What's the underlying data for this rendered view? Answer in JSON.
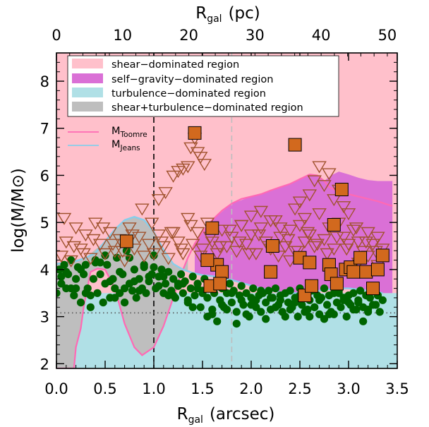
{
  "chart_data": {
    "type": "scatter",
    "xlabel": "R",
    "xlabel_sub": "gal",
    "xlabel_unit": "(arcsec)",
    "x2label": "R",
    "x2label_sub": "gal",
    "x2label_unit": "(pc)",
    "ylabel": "log(M/M⊙)",
    "xlim": [
      0.0,
      3.5
    ],
    "ylim": [
      1.9,
      8.6
    ],
    "x2lim": [
      0,
      51.5
    ],
    "xticks": [
      0.0,
      0.5,
      1.0,
      1.5,
      2.0,
      2.5,
      3.0,
      3.5
    ],
    "xtick_labels": [
      "0.0",
      "0.5",
      "1.0",
      "1.5",
      "2.0",
      "2.5",
      "3.0",
      "3.5"
    ],
    "x2ticks": [
      0,
      10,
      20,
      30,
      40,
      50
    ],
    "x2tick_labels": [
      "0",
      "10",
      "20",
      "30",
      "40",
      "50"
    ],
    "yticks": [
      2,
      3,
      4,
      5,
      6,
      7,
      8
    ],
    "ytick_labels": [
      "2",
      "3",
      "4",
      "5",
      "6",
      "7",
      "8"
    ],
    "grid": false,
    "legend_position": "top-left",
    "legend": [
      {
        "label": "shear−dominated region",
        "color": "#ffc0cb",
        "kind": "patch"
      },
      {
        "label": "self−gravity−dominated region",
        "color": "#da70d6",
        "kind": "patch"
      },
      {
        "label": "turbulence−dominated region",
        "color": "#b0e0e6",
        "kind": "patch"
      },
      {
        "label": "shear+turbulence−dominated region",
        "color": "#bebebe",
        "kind": "patch"
      }
    ],
    "line_legend": [
      {
        "label": "M",
        "sub": "Toomre",
        "color": "#ff69b4"
      },
      {
        "label": "M",
        "sub": "Jeans",
        "color": "#87ceeb"
      }
    ],
    "colors": {
      "shear": "#ffc0cb",
      "self_gravity": "#da70d6",
      "turbulence": "#b0e0e6",
      "shear_turbulence": "#bebebe",
      "toomre": "#ff69b4",
      "jeans": "#87ceeb",
      "clumps": "#006400",
      "upper_limits": "#a0522d",
      "squares": "#d2691e"
    },
    "vlines": [
      {
        "x": 1.0,
        "style": "dashed",
        "color": "#000000"
      },
      {
        "x": 1.8,
        "style": "dashed",
        "color": "#bebebe"
      }
    ],
    "hlines": [
      {
        "y": 3.08,
        "style": "dotted",
        "color": "#555555"
      }
    ],
    "series": [
      {
        "name": "M",
        "subscript": "Toomre",
        "kind": "line",
        "x": [
          0.0,
          0.18,
          0.2,
          0.25,
          0.28,
          0.35,
          0.42,
          0.5,
          0.6,
          0.7,
          0.8,
          0.88,
          1.0,
          1.1,
          1.2,
          1.28,
          1.35,
          1.42,
          1.5,
          1.6,
          1.7,
          1.8,
          1.9,
          2.0,
          2.1,
          2.2,
          2.3,
          2.4,
          2.5,
          2.6,
          2.68,
          2.75,
          2.8,
          2.9,
          3.0,
          3.1,
          3.2,
          3.3,
          3.4,
          3.45
        ],
        "values": [
          1.9,
          1.9,
          2.35,
          2.75,
          3.2,
          3.95,
          4.02,
          4.0,
          3.6,
          2.85,
          2.35,
          2.18,
          2.35,
          2.8,
          3.4,
          3.9,
          4.25,
          4.55,
          4.8,
          5.05,
          5.25,
          5.4,
          5.5,
          5.55,
          5.6,
          5.68,
          5.75,
          5.82,
          5.92,
          6.02,
          6.0,
          5.88,
          5.75,
          5.65,
          5.6,
          5.55,
          5.5,
          5.45,
          5.38,
          5.35
        ]
      },
      {
        "name": "M",
        "subscript": "Jeans",
        "kind": "line",
        "x": [
          0.0,
          0.1,
          0.2,
          0.3,
          0.4,
          0.5,
          0.6,
          0.7,
          0.8,
          0.9,
          1.0,
          1.1,
          1.2,
          1.3,
          1.4,
          1.5,
          1.6,
          1.7,
          1.8,
          1.9,
          2.0,
          2.1,
          2.2,
          2.3,
          2.4,
          2.5,
          2.6,
          2.7,
          2.8,
          2.9,
          3.0,
          3.1,
          3.2,
          3.3,
          3.35
        ],
        "values": [
          4.12,
          4.15,
          4.18,
          4.25,
          4.35,
          4.6,
          4.85,
          5.05,
          5.12,
          5.05,
          4.8,
          4.42,
          4.12,
          4.0,
          3.93,
          3.88,
          3.86,
          3.82,
          3.78,
          3.72,
          3.66,
          3.6,
          3.55,
          3.52,
          3.5,
          3.5,
          3.52,
          3.55,
          3.58,
          3.6,
          3.6,
          3.58,
          3.55,
          3.52,
          3.5
        ]
      },
      {
        "name": "",
        "kind": "filled-circle",
        "x": [
          0.0,
          0.03,
          0.05,
          0.08,
          0.1,
          0.12,
          0.15,
          0.18,
          0.2,
          0.22,
          0.25,
          0.28,
          0.3,
          0.32,
          0.35,
          0.38,
          0.4,
          0.42,
          0.45,
          0.48,
          0.5,
          0.52,
          0.55,
          0.58,
          0.6,
          0.62,
          0.65,
          0.68,
          0.7,
          0.72,
          0.75,
          0.78,
          0.8,
          0.82,
          0.85,
          0.88,
          0.9,
          0.92,
          0.95,
          0.98,
          1.0,
          1.02,
          1.05,
          1.08,
          1.1,
          1.12,
          1.15,
          1.18,
          1.2,
          1.22,
          1.25,
          1.28,
          1.3,
          1.32,
          1.35,
          1.38,
          1.4,
          1.42,
          1.45,
          1.48,
          1.5,
          1.52,
          1.55,
          1.58,
          1.6,
          1.62,
          1.65,
          1.68,
          1.7,
          1.72,
          1.75,
          1.78,
          1.8,
          1.82,
          1.85,
          1.88,
          1.9,
          1.92,
          1.95,
          1.98,
          2.0,
          2.02,
          2.05,
          2.08,
          2.1,
          2.12,
          2.15,
          2.18,
          2.2,
          2.22,
          2.25,
          2.28,
          2.3,
          2.32,
          2.35,
          2.38,
          2.4,
          2.42,
          2.45,
          2.48,
          2.5,
          2.52,
          2.55,
          2.58,
          2.6,
          2.62,
          2.65,
          2.68,
          2.7,
          2.72,
          2.75,
          2.78,
          2.8,
          2.82,
          2.85,
          2.88,
          2.9,
          2.92,
          2.95,
          2.98,
          3.0,
          3.02,
          3.05,
          3.08,
          3.1,
          3.12,
          3.15,
          3.18,
          3.2,
          3.22,
          3.25,
          3.28,
          3.3,
          3.32,
          3.35,
          0.05,
          0.15,
          0.25,
          0.35,
          0.45,
          0.55,
          0.65,
          0.75,
          0.85,
          0.95,
          1.05,
          1.15,
          1.25,
          1.35,
          1.45,
          1.55,
          1.65,
          1.75,
          1.85,
          1.95,
          2.05,
          2.15,
          2.25,
          2.35,
          2.45,
          2.55,
          2.65,
          2.75,
          2.85,
          2.95,
          3.05,
          3.15,
          3.25,
          0.1,
          0.3,
          0.5,
          0.7,
          0.9,
          1.1,
          1.3,
          1.5,
          1.7,
          1.9,
          2.1,
          2.3,
          2.5,
          2.7,
          2.9,
          3.1,
          3.3,
          0.2,
          0.6,
          1.0,
          1.4,
          1.8,
          2.2,
          2.6,
          3.0,
          0.4,
          0.8,
          1.2,
          1.6,
          2.0,
          2.4,
          2.8,
          3.2
        ],
        "values": [
          3.5,
          4.0,
          3.7,
          4.1,
          3.6,
          3.9,
          4.2,
          3.45,
          3.8,
          4.05,
          3.3,
          3.9,
          4.1,
          3.6,
          3.2,
          3.8,
          4.2,
          3.5,
          3.9,
          3.3,
          3.7,
          4.1,
          3.4,
          3.8,
          3.6,
          4.25,
          3.5,
          3.9,
          3.3,
          4.4,
          3.7,
          3.55,
          4.0,
          3.4,
          3.8,
          3.6,
          4.1,
          3.5,
          3.75,
          3.9,
          4.05,
          3.6,
          3.85,
          4.0,
          3.5,
          3.7,
          3.95,
          3.55,
          3.8,
          3.4,
          3.65,
          3.9,
          3.5,
          3.75,
          3.3,
          3.6,
          3.85,
          3.45,
          3.7,
          3.2,
          3.55,
          3.8,
          3.4,
          3.65,
          3.05,
          3.5,
          3.75,
          3.35,
          3.6,
          3.2,
          3.5,
          3.7,
          3.3,
          3.55,
          3.1,
          3.45,
          3.65,
          3.25,
          3.5,
          3.0,
          3.4,
          3.6,
          3.2,
          3.45,
          3.1,
          3.5,
          3.3,
          3.55,
          3.15,
          3.4,
          3.6,
          3.25,
          3.45,
          3.1,
          3.5,
          3.3,
          3.55,
          3.2,
          3.4,
          3.0,
          3.45,
          3.25,
          3.5,
          3.15,
          3.35,
          3.55,
          3.2,
          3.45,
          3.05,
          3.4,
          3.6,
          3.25,
          3.45,
          3.1,
          3.5,
          3.3,
          3.55,
          3.2,
          3.4,
          3.0,
          3.45,
          3.25,
          3.5,
          3.15,
          3.35,
          3.55,
          3.2,
          3.45,
          3.1,
          3.4,
          3.6,
          3.25,
          3.45,
          3.1,
          3.35,
          3.85,
          3.6,
          4.0,
          3.45,
          4.15,
          3.75,
          3.95,
          4.25,
          3.55,
          3.85,
          3.65,
          3.45,
          3.7,
          3.35,
          3.6,
          3.0,
          2.9,
          3.15,
          2.85,
          3.05,
          3.35,
          2.95,
          3.2,
          3.0,
          3.3,
          3.1,
          3.2,
          2.95,
          3.05,
          3.35,
          3.15,
          2.9,
          3.25,
          3.95,
          3.5,
          4.3,
          3.6,
          4.05,
          3.85,
          3.7,
          3.5,
          3.25,
          3.35,
          3.55,
          3.35,
          3.6,
          3.35,
          3.5,
          3.3,
          3.45,
          3.6,
          3.4,
          4.3,
          3.2,
          3.5,
          3.4,
          3.0,
          3.3,
          4.15,
          3.75,
          3.45,
          3.15,
          3.25,
          3.15,
          3.05,
          3.15
        ]
      },
      {
        "name": "",
        "kind": "open-triangle-down",
        "x": [
          0.05,
          0.1,
          0.15,
          0.2,
          0.25,
          0.3,
          0.35,
          0.4,
          0.45,
          0.5,
          0.55,
          0.6,
          0.65,
          0.7,
          0.75,
          0.8,
          0.85,
          0.9,
          0.95,
          1.0,
          1.05,
          1.1,
          1.15,
          1.2,
          1.25,
          1.3,
          1.35,
          1.4,
          1.45,
          1.5,
          1.55,
          1.6,
          1.65,
          1.7,
          1.75,
          1.8,
          1.85,
          1.9,
          1.95,
          2.0,
          2.05,
          2.1,
          2.15,
          2.2,
          2.25,
          2.3,
          2.35,
          2.4,
          2.45,
          2.5,
          2.55,
          2.6,
          2.65,
          2.7,
          2.75,
          2.8,
          2.85,
          2.9,
          2.95,
          3.0,
          3.05,
          3.1,
          3.15,
          3.2,
          3.25,
          3.3,
          3.35,
          0.08,
          0.18,
          0.28,
          0.38,
          0.48,
          0.58,
          0.68,
          0.78,
          0.88,
          0.98,
          1.08,
          1.18,
          1.28,
          1.38,
          1.48,
          1.58,
          1.68,
          1.78,
          1.88,
          1.98,
          2.08,
          2.18,
          2.28,
          2.38,
          2.48,
          2.58,
          2.68,
          2.78,
          2.88,
          2.98,
          3.08,
          3.18,
          3.28,
          1.05,
          1.12,
          1.2,
          1.25,
          1.3,
          1.35,
          1.38,
          1.42,
          1.45,
          1.48,
          1.52,
          2.6,
          2.65,
          2.7,
          2.75,
          2.8,
          2.85,
          2.9,
          2.95,
          3.0,
          2.45,
          2.5,
          2.55,
          1.9,
          2.0,
          2.1,
          2.2,
          2.3,
          2.4,
          3.1,
          3.2,
          3.3
        ],
        "values": [
          4.3,
          4.6,
          4.2,
          4.9,
          4.45,
          4.75,
          4.25,
          5.0,
          4.55,
          4.35,
          4.8,
          4.4,
          4.65,
          4.2,
          4.9,
          4.45,
          4.7,
          4.3,
          4.55,
          4.35,
          4.75,
          4.5,
          4.25,
          4.8,
          4.6,
          4.35,
          5.1,
          4.55,
          4.8,
          4.45,
          5.0,
          4.6,
          4.35,
          4.85,
          4.5,
          4.7,
          4.4,
          4.95,
          4.55,
          4.75,
          4.35,
          4.9,
          4.6,
          4.45,
          5.05,
          4.7,
          4.5,
          4.85,
          4.4,
          4.95,
          4.6,
          4.75,
          4.5,
          5.2,
          4.65,
          4.9,
          4.45,
          5.0,
          4.7,
          4.55,
          4.85,
          4.6,
          4.4,
          4.8,
          4.55,
          4.7,
          4.45,
          5.1,
          4.5,
          4.35,
          4.65,
          4.9,
          4.55,
          4.4,
          4.75,
          5.3,
          5.0,
          4.6,
          4.8,
          4.45,
          4.95,
          4.3,
          4.7,
          4.5,
          4.85,
          4.6,
          4.35,
          4.75,
          4.5,
          4.3,
          4.65,
          4.4,
          4.8,
          4.55,
          4.35,
          4.7,
          4.45,
          4.9,
          4.6,
          4.4,
          5.5,
          5.65,
          6.0,
          6.1,
          6.15,
          6.2,
          6.6,
          6.8,
          6.5,
          6.4,
          6.25,
          5.6,
          5.9,
          6.2,
          5.8,
          6.05,
          5.5,
          5.7,
          5.35,
          5.2,
          5.3,
          5.45,
          5.1,
          4.95,
          5.15,
          5.25,
          5.05,
          4.9,
          4.2,
          4.15,
          4.3,
          4.1
        ]
      },
      {
        "name": "",
        "kind": "filled-square",
        "x": [
          0.72,
          1.42,
          1.6,
          1.65,
          1.55,
          1.7,
          1.58,
          1.68,
          2.22,
          2.2,
          2.45,
          2.5,
          2.55,
          2.6,
          2.62,
          2.8,
          2.82,
          2.85,
          2.88,
          2.93,
          2.97,
          3.02,
          3.05,
          3.12,
          3.18,
          3.25,
          3.3,
          3.35
        ],
        "values": [
          4.6,
          6.9,
          4.88,
          4.1,
          4.2,
          3.95,
          3.65,
          3.7,
          4.5,
          3.95,
          6.65,
          4.25,
          3.45,
          4.15,
          3.65,
          4.1,
          3.9,
          4.95,
          3.7,
          5.7,
          4.0,
          4.05,
          3.95,
          4.25,
          3.95,
          3.6,
          4.0,
          4.3
        ]
      }
    ],
    "regions": {
      "self_gravity_upper": {
        "x": [
          1.42,
          1.6,
          1.8,
          2.0,
          2.2,
          2.4,
          2.6,
          2.68,
          2.75,
          2.82,
          2.9,
          3.0,
          3.1,
          3.2,
          3.3,
          3.45
        ],
        "values": [
          4.55,
          5.05,
          5.4,
          5.55,
          5.68,
          5.82,
          6.02,
          6.0,
          5.88,
          6.0,
          6.08,
          6.02,
          5.95,
          5.9,
          5.88,
          5.88
        ]
      },
      "self_gravity_lower": {
        "x": [
          1.42,
          1.6,
          1.8,
          2.0,
          2.2,
          2.4,
          2.6,
          2.8,
          3.0,
          3.2,
          3.35,
          3.45
        ],
        "values": [
          3.93,
          3.86,
          3.78,
          3.66,
          3.55,
          3.5,
          3.52,
          3.58,
          3.6,
          3.55,
          3.5,
          3.5
        ]
      },
      "turbulence_top": 3.5,
      "shear_turbulence_upper": {
        "x": [
          0.0,
          0.3,
          0.5,
          0.6,
          0.7,
          0.8,
          0.9,
          1.0,
          1.1,
          1.2,
          1.3,
          1.35
        ],
        "values": [
          4.12,
          4.25,
          4.6,
          4.85,
          5.05,
          5.12,
          5.05,
          4.8,
          4.42,
          4.12,
          4.0,
          3.95
        ]
      },
      "shear_turbulence_lower": {
        "x": [
          0.0,
          0.18,
          0.2,
          0.25,
          0.28,
          0.35,
          0.42,
          0.5,
          0.6,
          0.7,
          0.8,
          0.88,
          1.0,
          1.1,
          1.2,
          1.28,
          1.35
        ],
        "values": [
          1.9,
          1.9,
          2.35,
          2.75,
          3.2,
          3.95,
          4.02,
          4.0,
          3.6,
          2.85,
          2.35,
          2.18,
          2.35,
          2.8,
          3.4,
          3.9,
          4.25
        ]
      }
    }
  }
}
